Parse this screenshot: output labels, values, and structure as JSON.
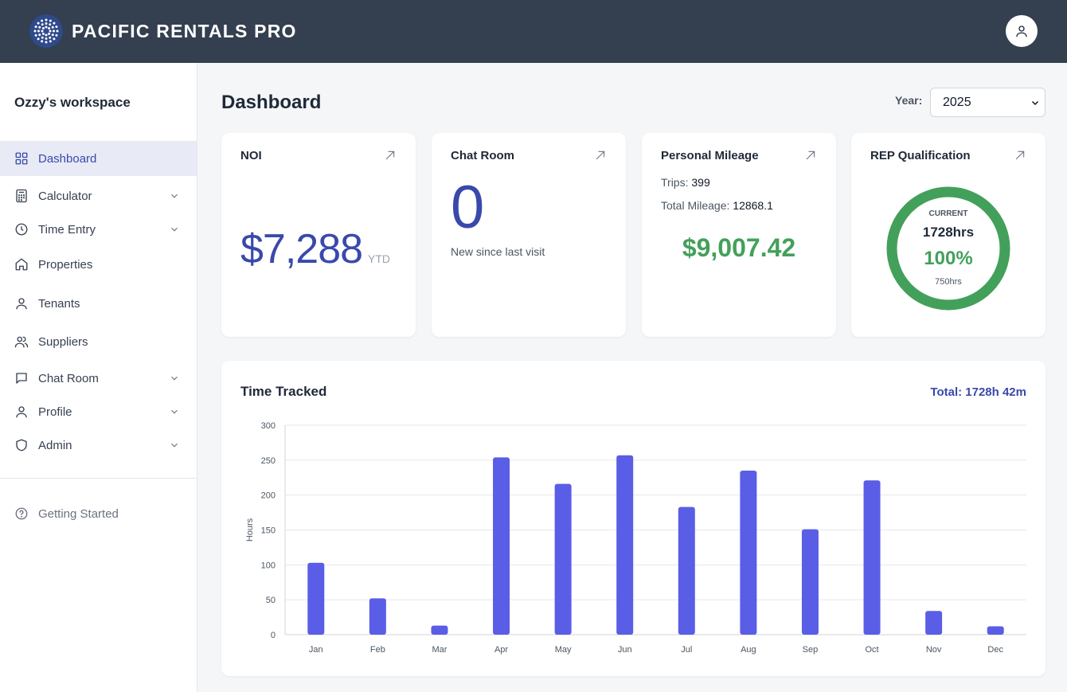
{
  "app": {
    "brand": "PACIFIC RENTALS PRO",
    "logo_icon": "ring-of-dots-logo",
    "user_icon": "user-icon"
  },
  "sidebar": {
    "workspace": "Ozzy's workspace",
    "items": [
      {
        "label": "Dashboard",
        "icon": "grid-icon",
        "active": true,
        "expandable": false
      },
      {
        "label": "Calculator",
        "icon": "calculator-icon",
        "active": false,
        "expandable": true
      },
      {
        "label": "Time Entry",
        "icon": "clock-icon",
        "active": false,
        "expandable": true
      },
      {
        "label": "Properties",
        "icon": "home-icon",
        "active": false,
        "expandable": false
      },
      {
        "label": "Tenants",
        "icon": "user-icon",
        "active": false,
        "expandable": false
      },
      {
        "label": "Suppliers",
        "icon": "users-icon",
        "active": false,
        "expandable": false
      },
      {
        "label": "Chat Room",
        "icon": "chat-icon",
        "active": false,
        "expandable": true
      },
      {
        "label": "Profile",
        "icon": "user-icon",
        "active": false,
        "expandable": true
      },
      {
        "label": "Admin",
        "icon": "shield-icon",
        "active": false,
        "expandable": true
      }
    ],
    "footer_item": {
      "label": "Getting Started",
      "icon": "help-circle-icon"
    }
  },
  "header": {
    "title": "Dashboard",
    "year_label": "Year:",
    "year_value": "2025"
  },
  "cards": {
    "noi": {
      "title": "NOI",
      "value": "$7,288",
      "suffix": "YTD"
    },
    "chat": {
      "title": "Chat Room",
      "count": "0",
      "subtitle": "New since last visit"
    },
    "mileage": {
      "title": "Personal Mileage",
      "trips_label": "Trips:",
      "trips_value": "399",
      "mileage_label": "Total Mileage:",
      "mileage_value": "12868.1",
      "amount": "$9,007.42"
    },
    "rep": {
      "title": "REP Qualification",
      "current_label": "CURRENT",
      "current_hours": "1728hrs",
      "percent": "100%",
      "progress": 1.0,
      "target": "750hrs"
    }
  },
  "colors": {
    "accent": "#3949ab",
    "bar": "#5a5de6",
    "success": "#43a05a",
    "topbar": "#343f4f"
  },
  "chart_data": {
    "type": "bar",
    "title": "Time Tracked",
    "total_label": "Total: 1728h 42m",
    "ylabel": "Hours",
    "xlabel": "",
    "categories": [
      "Jan",
      "Feb",
      "Mar",
      "Apr",
      "May",
      "Jun",
      "Jul",
      "Aug",
      "Sep",
      "Oct",
      "Nov",
      "Dec"
    ],
    "values": [
      103,
      52,
      13,
      254,
      216,
      257,
      183,
      235,
      151,
      221,
      34,
      12
    ],
    "ylim": [
      0,
      300
    ],
    "yticks": [
      "0",
      "50",
      "100",
      "150",
      "200",
      "250",
      "300"
    ],
    "grid": true
  }
}
